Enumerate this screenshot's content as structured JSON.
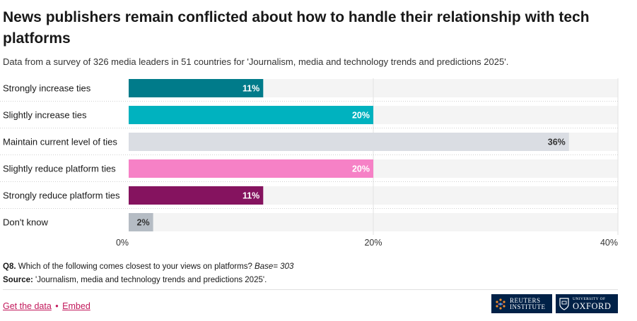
{
  "title": "News publishers remain conflicted about how to handle their relationship with tech platforms",
  "subtitle": "Data from a survey of 326 media leaders in 51 countries for 'Journalism, media and technology trends and predictions 2025'.",
  "chart_data": {
    "type": "bar",
    "orientation": "horizontal",
    "categories": [
      "Strongly increase ties",
      "Slightly increase ties",
      "Maintain current level of ties",
      "Slightly reduce platform ties",
      "Strongly reduce platform ties",
      "Don't know"
    ],
    "values": [
      11,
      20,
      36,
      20,
      11,
      2
    ],
    "value_labels": [
      "11%",
      "20%",
      "36%",
      "20%",
      "11%",
      "2%"
    ],
    "bar_colors": [
      "#007b8a",
      "#00b2bf",
      "#dadde3",
      "#f681c6",
      "#85135f",
      "#b5bcc4"
    ],
    "label_colors": [
      "#ffffff",
      "#ffffff",
      "#333333",
      "#ffffff",
      "#ffffff",
      "#333333"
    ],
    "xlim": [
      0,
      40
    ],
    "ticks": [
      0,
      20,
      40
    ],
    "tick_labels": [
      "0%",
      "20%",
      "40%"
    ],
    "xlabel": "",
    "ylabel": "",
    "grid": true,
    "track_color": "#f4f4f4"
  },
  "footnotes": {
    "q_label": "Q8.",
    "question": "Which of the following comes closest to your views on platforms?",
    "base": "Base= 303",
    "source_label": "Source:",
    "source": "'Journalism, media and technology trends and predictions 2025'."
  },
  "links": {
    "get_data": "Get the data",
    "separator": "•",
    "embed": "Embed"
  },
  "logos": {
    "reuters_line1": "REUTERS",
    "reuters_line2": "INSTITUTE",
    "oxford_line1": "UNIVERSITY OF",
    "oxford_line2": "OXFORD",
    "brand_color": "#002147"
  }
}
